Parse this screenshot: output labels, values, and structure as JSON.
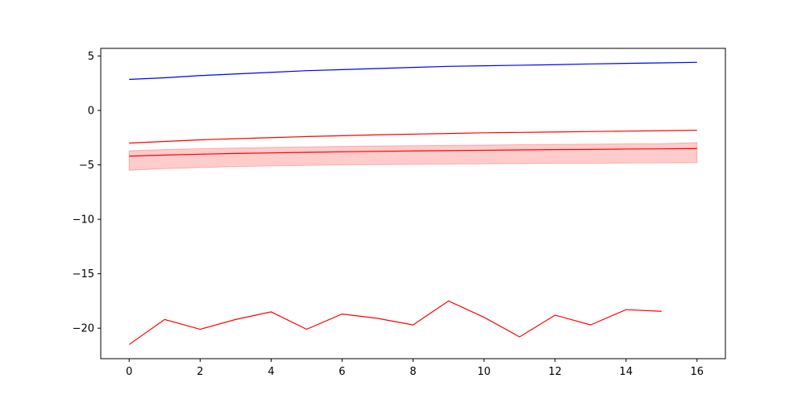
{
  "chart_data": {
    "type": "line",
    "title": "",
    "xlabel": "",
    "ylabel": "",
    "xlim": [
      -0.8,
      16.8
    ],
    "ylim": [
      -22.8,
      5.7
    ],
    "grid": false,
    "legend": "none",
    "xticks": [
      0,
      2,
      4,
      6,
      8,
      10,
      12,
      14,
      16
    ],
    "yticks": [
      5,
      0,
      -5,
      -10,
      -15,
      -20
    ],
    "ytick_labels": [
      "5",
      "0",
      "−5",
      "−10",
      "−15",
      "−20"
    ],
    "series": [
      {
        "color": "#0000ff",
        "x": [
          0,
          1,
          2,
          3,
          4,
          5,
          6,
          7,
          8,
          9,
          10,
          11,
          12,
          13,
          14,
          15,
          16
        ],
        "values": [
          2.85,
          3.0,
          3.2,
          3.35,
          3.5,
          3.65,
          3.75,
          3.85,
          3.95,
          4.05,
          4.1,
          4.15,
          4.2,
          4.27,
          4.32,
          4.37,
          4.42
        ]
      },
      {
        "color": "#ff0000",
        "x": [
          0,
          1,
          2,
          3,
          4,
          5,
          6,
          7,
          8,
          9,
          10,
          11,
          12,
          13,
          14,
          15,
          16
        ],
        "values": [
          -3.0,
          -2.85,
          -2.7,
          -2.6,
          -2.5,
          -2.4,
          -2.32,
          -2.24,
          -2.18,
          -2.12,
          -2.06,
          -2.02,
          -1.98,
          -1.94,
          -1.9,
          -1.86,
          -1.82
        ]
      },
      {
        "color": "#ff0000",
        "x": [
          0,
          1,
          2,
          3,
          4,
          5,
          6,
          7,
          8,
          9,
          10,
          11,
          12,
          13,
          14,
          15,
          16
        ],
        "values": [
          -4.2,
          -4.1,
          -4.02,
          -3.95,
          -3.9,
          -3.85,
          -3.8,
          -3.76,
          -3.72,
          -3.69,
          -3.66,
          -3.63,
          -3.6,
          -3.58,
          -3.55,
          -3.53,
          -3.5
        ],
        "band_low": [
          -5.5,
          -5.35,
          -5.25,
          -5.15,
          -5.1,
          -5.05,
          -5.0,
          -4.98,
          -4.95,
          -4.92,
          -4.9,
          -4.88,
          -4.86,
          -4.85,
          -4.83,
          -4.82,
          -4.8
        ],
        "band_high": [
          -3.7,
          -3.6,
          -3.52,
          -3.45,
          -3.4,
          -3.35,
          -3.3,
          -3.27,
          -3.24,
          -3.21,
          -3.18,
          -3.15,
          -3.12,
          -3.1,
          -3.07,
          -3.05,
          -2.95
        ],
        "band_color": "#ff0000",
        "band_opacity": 0.2
      },
      {
        "color": "#ff0000",
        "x": [
          0,
          1,
          2,
          3,
          4,
          5,
          6,
          7,
          8,
          9,
          10,
          11,
          12,
          13,
          14,
          15
        ],
        "values": [
          -21.5,
          -19.2,
          -20.1,
          -19.2,
          -18.5,
          -20.1,
          -18.7,
          -19.1,
          -19.7,
          -17.5,
          -19.0,
          -20.8,
          -18.8,
          -19.7,
          -18.3,
          -18.45
        ]
      }
    ]
  }
}
